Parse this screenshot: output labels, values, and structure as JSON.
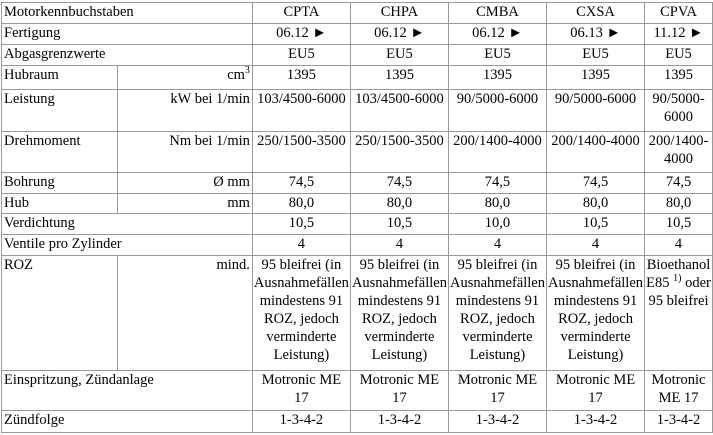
{
  "columns": [
    "CPTA",
    "CHPA",
    "CMBA",
    "CXSA",
    "CPVA"
  ],
  "header_label": "Motorkennbuchstaben",
  "rows": [
    {
      "label": "Fertigung",
      "unit": "",
      "values": [
        "06.12 ►",
        "06.12 ►",
        "06.12 ►",
        "06.13 ►",
        "11.12 ►"
      ]
    },
    {
      "label": "Abgasgrenzwerte",
      "unit": "",
      "values": [
        "EU5",
        "EU5",
        "EU5",
        "EU5",
        "EU5"
      ]
    },
    {
      "label": "Hubraum",
      "unit": "cm",
      "unit_sup": "3",
      "values": [
        "1395",
        "1395",
        "1395",
        "1395",
        "1395"
      ]
    },
    {
      "label": "Leistung",
      "unit": "kW bei 1/min",
      "values": [
        "103/4500-6000",
        "103/4500-6000",
        "90/5000-6000",
        "90/5000-6000",
        "90/5000-6000"
      ]
    },
    {
      "label": "Drehmoment",
      "unit": "Nm bei 1/min",
      "values": [
        "250/1500-3500",
        "250/1500-3500",
        "200/1400-4000",
        "200/1400-4000",
        "200/1400-4000"
      ]
    },
    {
      "label": "Bohrung",
      "unit": "Ø mm",
      "values": [
        "74,5",
        "74,5",
        "74,5",
        "74,5",
        "74,5"
      ]
    },
    {
      "label": "Hub",
      "unit": "mm",
      "values": [
        "80,0",
        "80,0",
        "80,0",
        "80,0",
        "80,0"
      ]
    },
    {
      "label": "Verdichtung",
      "unit": "",
      "values": [
        "10,5",
        "10,5",
        "10,0",
        "10,5",
        "10,5"
      ]
    },
    {
      "label": "Ventile pro Zylinder",
      "unit": "",
      "values": [
        "4",
        "4",
        "4",
        "4",
        "4"
      ]
    },
    {
      "label": "ROZ",
      "unit": "mind.",
      "values": [
        "95 bleifrei (in Ausnahmefällen mindestens 91 ROZ, jedoch verminderte Leistung)",
        "95 bleifrei (in Ausnahmefällen mindestens 91 ROZ, jedoch verminderte Leistung)",
        "95 bleifrei (in Ausnahmefällen mindestens 91 ROZ, jedoch verminderte Leistung)",
        "95 bleifrei (in Ausnahmefällen mindestens 91 ROZ, jedoch verminderte Leistung)"
      ],
      "cpva_parts": [
        "Bioethanol E85",
        "1)",
        "oder 95 bleifrei"
      ]
    },
    {
      "label": "Einspritzung, Zündanlage",
      "unit": "",
      "values": [
        "Motronic ME 17",
        "Motronic ME 17",
        "Motronic ME 17",
        "Motronic ME 17",
        "Motronic ME 17"
      ]
    },
    {
      "label": "Zündfolge",
      "unit": "",
      "values": [
        "1-3-4-2",
        "1-3-4-2",
        "1-3-4-2",
        "1-3-4-2",
        "1-3-4-2"
      ]
    }
  ]
}
